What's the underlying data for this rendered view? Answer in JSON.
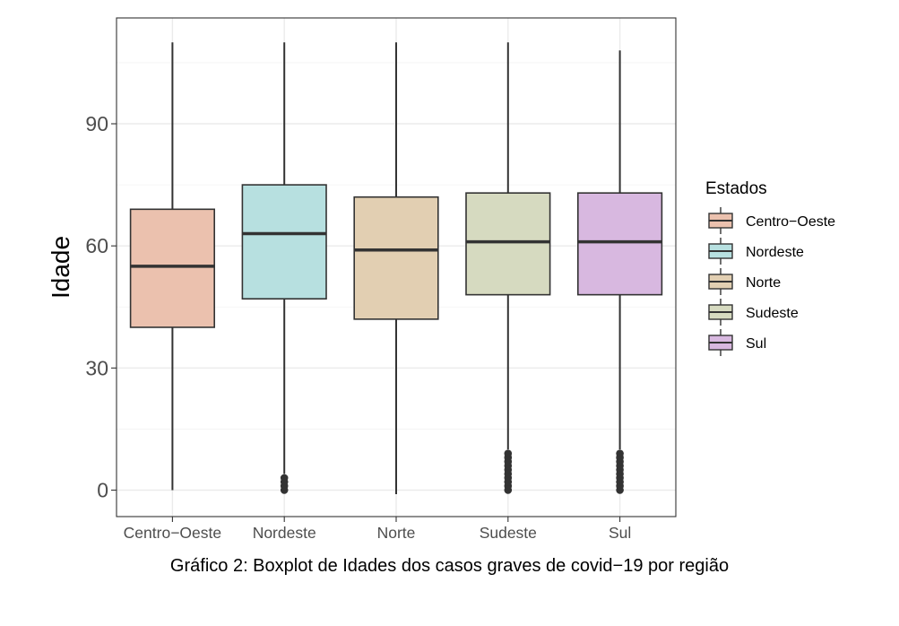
{
  "caption": "Gráfico 2: Boxplot de Idades dos casos graves de covid−19 por região",
  "chart_data": {
    "type": "boxplot",
    "ylabel": "Idade",
    "xlabel": "",
    "ylim": [
      -6.5,
      116
    ],
    "yticks": [
      0,
      30,
      60,
      90
    ],
    "grid": true,
    "legend": {
      "title": "Estados",
      "position": "right"
    },
    "categories": [
      "Centro−Oeste",
      "Nordeste",
      "Norte",
      "Sudeste",
      "Sul"
    ],
    "series": [
      {
        "name": "Centro−Oeste",
        "color": "#EBC1AE",
        "whisker_low": 0,
        "q1": 40,
        "median": 55,
        "q3": 69,
        "whisker_high": 110,
        "outliers": []
      },
      {
        "name": "Nordeste",
        "color": "#B7E0E0",
        "whisker_low": 4,
        "q1": 47,
        "median": 63,
        "q3": 75,
        "whisker_high": 110,
        "outliers": [
          0,
          1,
          2,
          3
        ]
      },
      {
        "name": "Norte",
        "color": "#E2CFB2",
        "whisker_low": -1,
        "q1": 42,
        "median": 59,
        "q3": 72,
        "whisker_high": 110,
        "outliers": []
      },
      {
        "name": "Sudeste",
        "color": "#D6DAC0",
        "whisker_low": 10,
        "q1": 48,
        "median": 61,
        "q3": 73,
        "whisker_high": 110,
        "outliers": [
          0,
          1,
          2,
          3,
          4,
          5,
          6,
          7,
          8,
          9
        ]
      },
      {
        "name": "Sul",
        "color": "#D8B8E0",
        "whisker_low": 10,
        "q1": 48,
        "median": 61,
        "q3": 73,
        "whisker_high": 108,
        "outliers": [
          0,
          1,
          2,
          3,
          4,
          5,
          6,
          7,
          8,
          9
        ]
      }
    ]
  }
}
